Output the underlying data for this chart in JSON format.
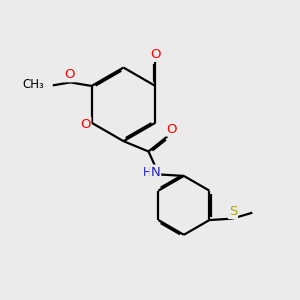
{
  "bg_color": "#ebebeb",
  "bond_color": "#000000",
  "bond_width": 1.6,
  "dbo": 0.055,
  "atom_colors": {
    "O": "#ff0000",
    "N": "#2222cc",
    "S": "#aaaa00",
    "C": "#000000"
  },
  "fs": 9.5,
  "fss": 8.5
}
